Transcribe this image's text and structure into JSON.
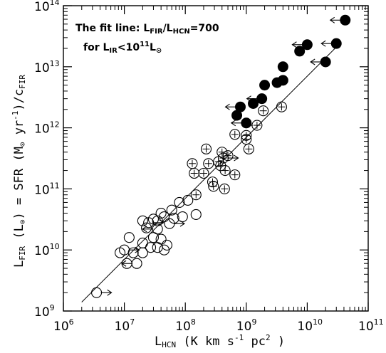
{
  "chart_data": {
    "type": "scatter",
    "x_scale": "log",
    "y_scale": "log",
    "xlim": [
      1000000.0,
      100000000000.0
    ],
    "ylim": [
      1000000000.0,
      100000000000000.0
    ],
    "x_ticks": [
      1000000.0,
      10000000.0,
      100000000.0,
      1000000000.0,
      10000000000.0,
      100000000000.0
    ],
    "y_ticks": [
      1000000000.0,
      10000000000.0,
      100000000000.0,
      1000000000000.0,
      10000000000000.0,
      100000000000000.0
    ],
    "xlabel": {
      "main": "L",
      "sub": "HCN",
      "rest": " (K km s",
      "exp": "-1",
      "rest2": " pc",
      "exp2": "2",
      "rest3": " )"
    },
    "ylabel": {
      "main": "L",
      "sub": "FIR",
      "rest": " (L",
      "sub2": "⊙",
      "rest2": ") = SFR (M",
      "sub3": "⊙",
      "rest3": " yr",
      "exp": "-1",
      "rest4": ")/c",
      "sub4": "FIR"
    },
    "annotation": {
      "line1": {
        "text": "The fit line: L",
        "sub1": "FIR",
        "mid": "/L",
        "sub2": "HCN",
        "end": "=700"
      },
      "line2": {
        "text": "for L",
        "sub1": "IR",
        "mid": "<10",
        "exp": "11",
        "end": "L",
        "sub2": "⊙"
      }
    },
    "fit_line": {
      "ratio": 700,
      "x_range": [
        2000000.0,
        35000000000.0
      ]
    },
    "tick_label": {
      "base": "10"
    },
    "series": [
      {
        "marker": "filled-circle",
        "points": [
          [
            42000000000.0,
            58000000000000.0,
            "left"
          ],
          [
            30000000000.0,
            24000000000000.0,
            "left"
          ],
          [
            10000000000.0,
            23000000000000.0,
            "left"
          ],
          [
            20000000000.0,
            12000000000000.0,
            "left"
          ],
          [
            7500000000.0,
            18000000000000.0,
            ""
          ],
          [
            4000000000.0,
            10000000000000.0,
            ""
          ],
          [
            4000000000.0,
            6000000000000.0,
            ""
          ],
          [
            3200000000.0,
            5500000000000.0,
            ""
          ],
          [
            2000000000.0,
            5000000000000.0,
            ""
          ],
          [
            1800000000.0,
            3000000000000.0,
            "left"
          ],
          [
            1300000000.0,
            2500000000000.0,
            ""
          ],
          [
            800000000.0,
            2200000000000.0,
            "left"
          ],
          [
            1000000000.0,
            1200000000000.0,
            "left"
          ],
          [
            700000000.0,
            1600000000000.0,
            ""
          ]
        ]
      },
      {
        "marker": "circle-plus",
        "points": [
          [
            3800000000.0,
            2200000000000.0,
            ""
          ],
          [
            1900000000.0,
            1900000000000.0,
            ""
          ],
          [
            1500000000.0,
            1100000000000.0,
            "left"
          ],
          [
            1000000000.0,
            750000000000.0,
            ""
          ],
          [
            1000000000.0,
            650000000000.0,
            ""
          ],
          [
            650000000.0,
            780000000000.0,
            ""
          ],
          [
            1100000000.0,
            450000000000.0,
            ""
          ],
          [
            500000000.0,
            350000000000.0,
            ""
          ],
          [
            400000000.0,
            400000000000.0,
            ""
          ],
          [
            420000000.0,
            320000000000.0,
            "right"
          ],
          [
            350000000.0,
            280000000000.0,
            ""
          ],
          [
            450000000.0,
            200000000000.0,
            ""
          ],
          [
            220000000.0,
            450000000000.0,
            ""
          ],
          [
            130000000.0,
            260000000000.0,
            ""
          ],
          [
            240000000.0,
            260000000000.0,
            ""
          ],
          [
            380000000.0,
            240000000000.0,
            ""
          ],
          [
            200000000.0,
            180000000000.0,
            ""
          ],
          [
            140000000.0,
            180000000000.0,
            ""
          ],
          [
            280000000.0,
            130000000000.0,
            ""
          ],
          [
            290000000.0,
            110000000000.0,
            ""
          ],
          [
            440000000.0,
            100000000000.0,
            ""
          ],
          [
            150000000.0,
            80000000000.0,
            ""
          ],
          [
            650000000.0,
            170000000000.0,
            ""
          ]
        ]
      },
      {
        "marker": "open-circle",
        "points": [
          [
            110000000.0,
            65000000000.0,
            ""
          ],
          [
            80000000.0,
            60000000000.0,
            ""
          ],
          [
            60000000.0,
            45000000000.0,
            ""
          ],
          [
            150000000.0,
            38000000000.0,
            ""
          ],
          [
            65000000.0,
            33000000000.0,
            ""
          ],
          [
            45000000.0,
            35000000000.0,
            ""
          ],
          [
            40000000.0,
            40000000000.0,
            ""
          ],
          [
            55000000.0,
            27000000000.0,
            "right"
          ],
          [
            90000000.0,
            35000000000.0,
            ""
          ],
          [
            35000000.0,
            30000000000.0,
            ""
          ],
          [
            30000000.0,
            32000000000.0,
            ""
          ],
          [
            25000000.0,
            28000000000.0,
            "right"
          ],
          [
            20000000.0,
            30000000000.0,
            ""
          ],
          [
            23000000.0,
            23000000000.0,
            ""
          ],
          [
            35000000.0,
            22000000000.0,
            "left"
          ],
          [
            30000000.0,
            16000000000.0,
            ""
          ],
          [
            20000000.0,
            13000000000.0,
            ""
          ],
          [
            27000000.0,
            11000000000.0,
            ""
          ],
          [
            40000000.0,
            15000000000.0,
            ""
          ],
          [
            50000000.0,
            12000000000.0,
            ""
          ],
          [
            45000000.0,
            10000000000.0,
            ""
          ],
          [
            35000000.0,
            11000000000.0,
            ""
          ],
          [
            12000000.0,
            16000000000.0,
            ""
          ],
          [
            10000000.0,
            10000000000.0,
            "right"
          ],
          [
            8500000.0,
            9000000000.0,
            ""
          ],
          [
            14000000.0,
            9000000000.0,
            ""
          ],
          [
            20000000.0,
            9000000000.0,
            ""
          ],
          [
            11000000.0,
            6000000000.0,
            ""
          ],
          [
            16000000.0,
            6000000000.0,
            "left"
          ],
          [
            3500000.0,
            2000000000.0,
            "right"
          ]
        ]
      }
    ]
  }
}
